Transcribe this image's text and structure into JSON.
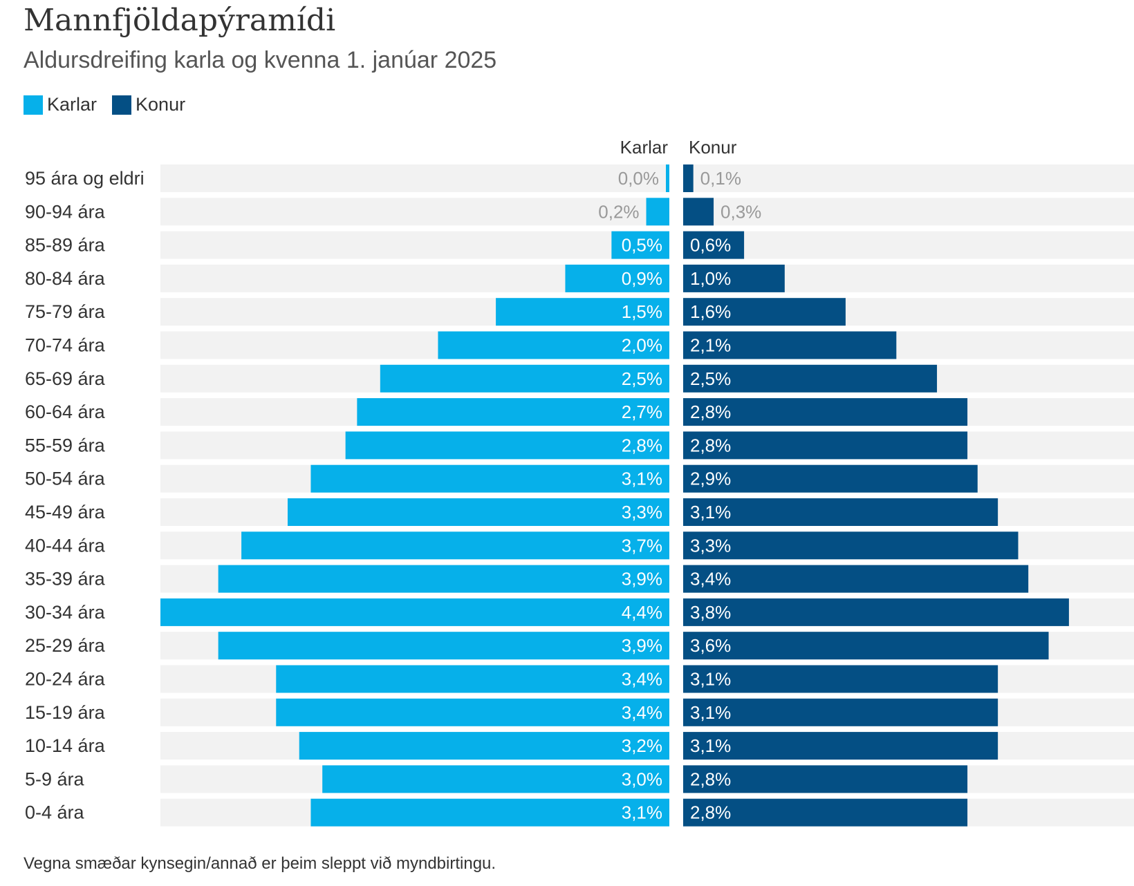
{
  "colors": {
    "men": "#06b0ea",
    "women": "#044f84",
    "track": "#f2f2f2",
    "label_dark": "#333333",
    "label_light": "#999999",
    "label_on_bar": "#ffffff"
  },
  "title": "Mannfjöldapýramídi",
  "subtitle": "Aldursdreifing karla og kvenna 1. janúar 2025",
  "legend": [
    {
      "label": "Karlar",
      "color": "#06b0ea"
    },
    {
      "label": "Konur",
      "color": "#044f84"
    }
  ],
  "footnote": "Vegna smæðar kynsegin/annað er þeim sleppt við myndbirtingu.",
  "chart_data": {
    "type": "bar",
    "orientation": "horizontal-pyramid",
    "title": "Mannfjöldapýramídi",
    "subtitle": "Aldursdreifing karla og kvenna 1. janúar 2025",
    "unit": "%",
    "column_headers": {
      "left": "Karlar",
      "right": "Konur"
    },
    "categories": [
      "95 ára og eldri",
      "90-94 ára",
      "85-89 ára",
      "80-84 ára",
      "75-79 ára",
      "70-74 ára",
      "65-69 ára",
      "60-64 ára",
      "55-59 ára",
      "50-54 ára",
      "45-49 ára",
      "40-44 ára",
      "35-39 ára",
      "30-34 ára",
      "25-29 ára",
      "20-24 ára",
      "15-19 ára",
      "10-14 ára",
      "5-9 ára",
      "0-4 ára"
    ],
    "series": [
      {
        "name": "Karlar",
        "values": [
          0.02,
          0.2,
          0.5,
          0.9,
          1.5,
          2.0,
          2.5,
          2.7,
          2.8,
          3.1,
          3.3,
          3.7,
          3.9,
          4.4,
          3.9,
          3.4,
          3.4,
          3.2,
          3.0,
          3.1
        ],
        "labels": [
          "0,0%",
          "0,2%",
          "0,5%",
          "0,9%",
          "1,5%",
          "2,0%",
          "2,5%",
          "2,7%",
          "2,8%",
          "3,1%",
          "3,3%",
          "3,7%",
          "3,9%",
          "4,4%",
          "3,9%",
          "3,4%",
          "3,4%",
          "3,2%",
          "3,0%",
          "3,1%"
        ]
      },
      {
        "name": "Konur",
        "values": [
          0.1,
          0.3,
          0.6,
          1.0,
          1.6,
          2.1,
          2.5,
          2.8,
          2.8,
          2.9,
          3.1,
          3.3,
          3.4,
          3.8,
          3.6,
          3.1,
          3.1,
          3.1,
          2.8,
          2.8
        ],
        "labels": [
          "0,1%",
          "0,3%",
          "0,6%",
          "1,0%",
          "1,6%",
          "2,1%",
          "2,5%",
          "2,8%",
          "2,8%",
          "2,9%",
          "3,1%",
          "3,3%",
          "3,4%",
          "3,8%",
          "3,6%",
          "3,1%",
          "3,1%",
          "3,1%",
          "2,8%",
          "2,8%"
        ]
      }
    ],
    "xlim": [
      0,
      4.4
    ],
    "grid": false,
    "legend": "top-left"
  }
}
